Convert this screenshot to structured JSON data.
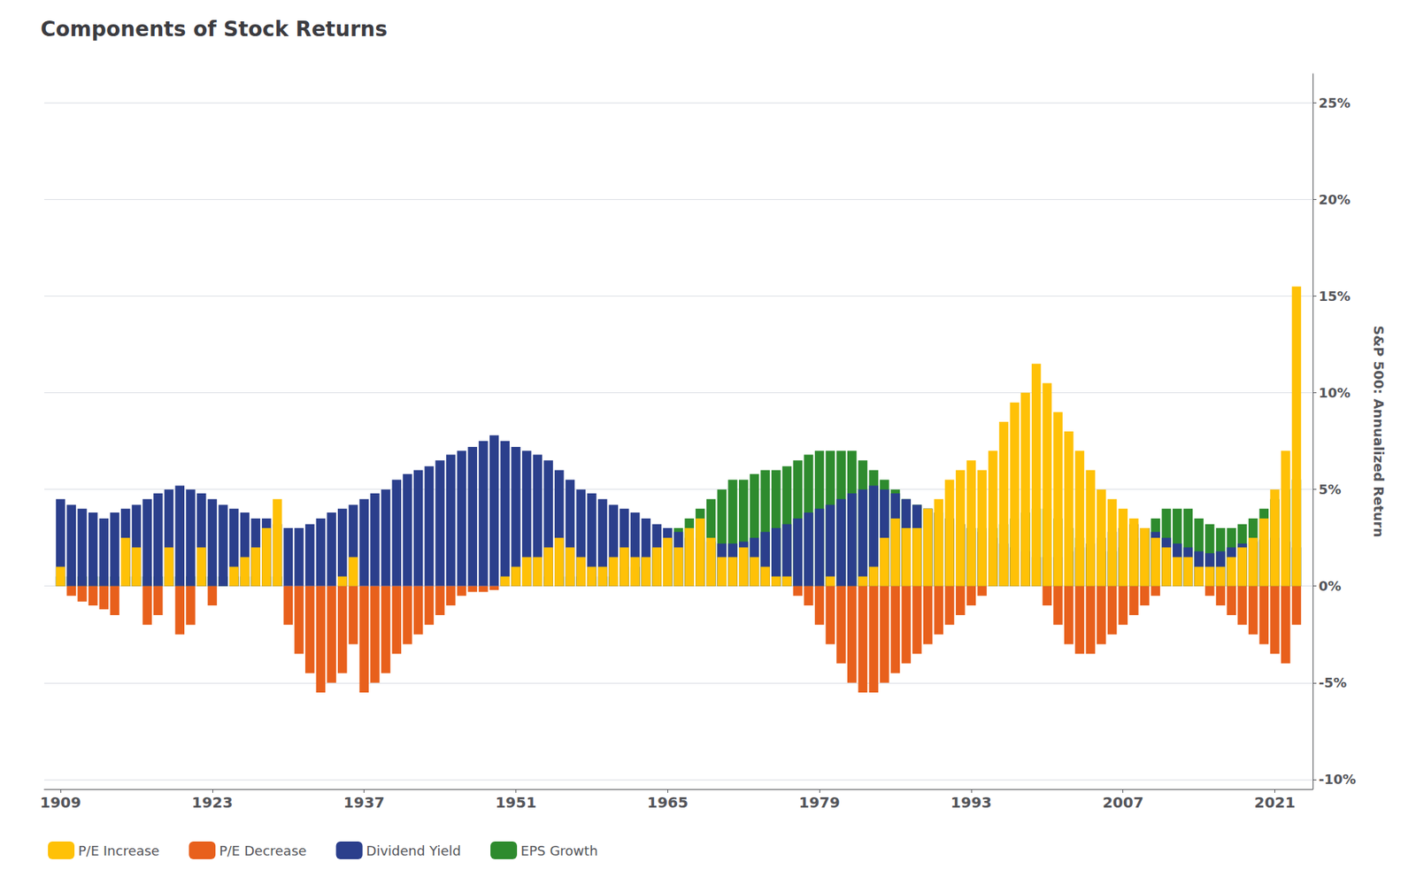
{
  "chart_data": {
    "type": "bar",
    "title": "Components of Stock Returns",
    "ylabel": "S&P 500: Annualized Return",
    "stacked": true,
    "grid": true,
    "legend": "lower left",
    "x": [
      1909,
      1910,
      1911,
      1912,
      1913,
      1914,
      1915,
      1916,
      1917,
      1918,
      1919,
      1920,
      1921,
      1922,
      1923,
      1924,
      1925,
      1926,
      1927,
      1928,
      1929,
      1930,
      1931,
      1932,
      1933,
      1934,
      1935,
      1936,
      1937,
      1938,
      1939,
      1940,
      1941,
      1942,
      1943,
      1944,
      1945,
      1946,
      1947,
      1948,
      1949,
      1950,
      1951,
      1952,
      1953,
      1954,
      1955,
      1956,
      1957,
      1958,
      1959,
      1960,
      1961,
      1962,
      1963,
      1964,
      1965,
      1966,
      1967,
      1968,
      1969,
      1970,
      1971,
      1972,
      1973,
      1974,
      1975,
      1976,
      1977,
      1978,
      1979,
      1980,
      1981,
      1982,
      1983,
      1984,
      1985,
      1986,
      1987,
      1988,
      1989,
      1990,
      1991,
      1992,
      1993,
      1994,
      1995,
      1996,
      1997,
      1998,
      1999,
      2000,
      2001,
      2002,
      2003,
      2004,
      2005,
      2006,
      2007,
      2008,
      2009,
      2010,
      2011,
      2012,
      2013,
      2014,
      2015,
      2016,
      2017,
      2018,
      2019,
      2020,
      2021,
      2022,
      2023
    ],
    "xlim": [
      1907.5,
      2024.5
    ],
    "xticks": [
      1909,
      1923,
      1937,
      1951,
      1965,
      1979,
      1993,
      2007,
      2021
    ],
    "ylim": [
      -10.5,
      26.5
    ],
    "yticks": [
      {
        "value": -10,
        "label": "-10%"
      },
      {
        "value": -5,
        "label": "-5%"
      },
      {
        "value": 0,
        "label": "0%"
      },
      {
        "value": 5,
        "label": "5%"
      },
      {
        "value": 10,
        "label": "10%"
      },
      {
        "value": 15,
        "label": "15%"
      },
      {
        "value": 20,
        "label": "20%"
      },
      {
        "value": 25,
        "label": "25%"
      }
    ],
    "series": [
      {
        "name": "P/E Increase",
        "color": "#FFC107",
        "values": [
          1.0,
          0.0,
          0.0,
          0.0,
          0.0,
          0.0,
          2.5,
          2.0,
          0.0,
          0.0,
          2.0,
          0.0,
          0.0,
          2.0,
          0.0,
          0.0,
          1.0,
          1.5,
          2.0,
          3.0,
          4.5,
          0.0,
          0.0,
          0.0,
          0.0,
          0.0,
          0.5,
          1.5,
          0.0,
          0.0,
          0.0,
          0.0,
          0.0,
          0.0,
          0.0,
          0.0,
          0.0,
          0.0,
          0.0,
          0.0,
          0.0,
          0.5,
          1.0,
          1.5,
          1.5,
          2.0,
          2.5,
          2.0,
          1.5,
          1.0,
          1.0,
          1.5,
          2.0,
          1.5,
          1.5,
          2.0,
          2.5,
          2.0,
          3.0,
          3.5,
          2.5,
          1.5,
          1.5,
          2.0,
          1.5,
          1.0,
          0.5,
          0.5,
          0.0,
          0.0,
          0.0,
          0.5,
          0.0,
          0.0,
          0.5,
          1.0,
          2.5,
          3.5,
          3.0,
          3.0,
          4.0,
          4.5,
          5.5,
          6.0,
          6.5,
          6.0,
          7.0,
          8.5,
          9.5,
          10.0,
          11.5,
          10.5,
          9.0,
          8.0,
          7.0,
          6.0,
          5.0,
          4.5,
          4.0,
          3.5,
          3.0,
          2.5,
          2.0,
          1.5,
          1.5,
          1.0,
          1.0,
          1.0,
          1.5,
          2.0,
          2.5,
          3.5,
          5.0,
          7.0,
          15.5
        ]
      },
      {
        "name": "P/E Decrease",
        "color": "#E8601C",
        "values": [
          0.0,
          -0.5,
          -0.8,
          -1.0,
          -1.2,
          -1.5,
          0.0,
          0.0,
          -2.0,
          -1.5,
          0.0,
          -2.5,
          -2.0,
          0.0,
          -1.0,
          0.0,
          0.0,
          0.0,
          0.0,
          0.0,
          0.0,
          -2.0,
          -3.5,
          -4.5,
          -5.5,
          -5.0,
          -4.5,
          -3.0,
          -5.5,
          -5.0,
          -4.5,
          -3.5,
          -3.0,
          -2.5,
          -2.0,
          -1.5,
          -1.0,
          -0.5,
          -0.3,
          -0.3,
          -0.2,
          0.0,
          0.0,
          0.0,
          0.0,
          0.0,
          0.0,
          0.0,
          0.0,
          0.0,
          0.0,
          0.0,
          0.0,
          0.0,
          0.0,
          0.0,
          0.0,
          0.0,
          0.0,
          0.0,
          0.0,
          0.0,
          0.0,
          0.0,
          0.0,
          0.0,
          0.0,
          0.0,
          -0.5,
          -1.0,
          -2.0,
          -3.0,
          -4.0,
          -5.0,
          -5.5,
          -5.5,
          -5.0,
          -4.5,
          -4.0,
          -3.5,
          -3.0,
          -2.5,
          -2.0,
          -1.5,
          -1.0,
          -0.5,
          0.0,
          0.0,
          0.0,
          0.0,
          0.0,
          -1.0,
          -2.0,
          -3.0,
          -3.5,
          -3.5,
          -3.0,
          -2.5,
          -2.0,
          -1.5,
          -1.0,
          -0.5,
          0.0,
          0.0,
          0.0,
          0.0,
          -0.5,
          -1.0,
          -1.5,
          -2.0,
          -2.5,
          -3.0,
          -3.5,
          -4.0,
          -2.0
        ]
      },
      {
        "name": "Dividend Yield",
        "color": "#2B3F8C",
        "values": [
          4.5,
          4.2,
          4.0,
          3.8,
          3.5,
          3.8,
          4.0,
          4.2,
          4.5,
          4.8,
          5.0,
          5.2,
          5.0,
          4.8,
          4.5,
          4.2,
          4.0,
          3.8,
          3.5,
          3.5,
          3.2,
          3.0,
          3.0,
          3.2,
          3.5,
          3.8,
          4.0,
          4.2,
          4.5,
          4.8,
          5.0,
          5.5,
          5.8,
          6.0,
          6.2,
          6.5,
          6.8,
          7.0,
          7.2,
          7.5,
          7.8,
          7.5,
          7.2,
          7.0,
          6.8,
          6.5,
          6.0,
          5.5,
          5.0,
          4.8,
          4.5,
          4.2,
          4.0,
          3.8,
          3.5,
          3.2,
          3.0,
          2.8,
          2.5,
          2.5,
          2.3,
          2.2,
          2.2,
          2.3,
          2.5,
          2.8,
          3.0,
          3.2,
          3.5,
          3.8,
          4.0,
          4.2,
          4.5,
          4.8,
          5.0,
          5.2,
          5.0,
          4.8,
          4.5,
          4.2,
          4.0,
          3.8,
          3.5,
          3.2,
          3.0,
          2.8,
          2.5,
          2.2,
          2.0,
          1.8,
          1.5,
          1.5,
          1.5,
          1.8,
          2.0,
          2.2,
          2.5,
          2.8,
          3.0,
          3.2,
          3.0,
          2.8,
          2.5,
          2.2,
          2.0,
          1.8,
          1.7,
          1.8,
          2.0,
          2.2,
          2.3,
          2.4,
          2.5,
          2.3,
          2.0
        ]
      },
      {
        "name": "EPS Growth",
        "color": "#2E8B2E",
        "values": [
          0.5,
          0.5,
          0.5,
          0.5,
          0.5,
          0.5,
          0.5,
          0.5,
          0.5,
          0.5,
          0.5,
          0.5,
          0.5,
          0.5,
          0.5,
          0.5,
          0.5,
          0.5,
          0.5,
          0.5,
          0.5,
          0.0,
          0.0,
          0.0,
          0.0,
          0.0,
          0.0,
          0.0,
          0.0,
          0.0,
          0.0,
          0.0,
          0.0,
          0.0,
          0.0,
          0.0,
          0.0,
          0.0,
          0.0,
          0.0,
          0.0,
          0.0,
          0.0,
          0.0,
          0.0,
          0.5,
          0.5,
          0.5,
          0.5,
          0.5,
          0.5,
          0.5,
          1.0,
          1.0,
          1.5,
          2.0,
          2.5,
          3.0,
          3.5,
          4.0,
          4.5,
          5.0,
          5.5,
          5.5,
          5.8,
          6.0,
          6.0,
          6.2,
          6.5,
          6.8,
          7.0,
          7.0,
          7.0,
          7.0,
          6.5,
          6.0,
          5.5,
          5.0,
          4.5,
          4.2,
          4.0,
          3.8,
          3.5,
          3.2,
          3.0,
          3.0,
          3.0,
          3.2,
          3.5,
          3.8,
          4.0,
          4.0,
          3.5,
          3.0,
          2.5,
          2.0,
          1.8,
          1.8,
          2.0,
          2.5,
          3.0,
          3.5,
          4.0,
          4.0,
          4.0,
          3.5,
          3.2,
          3.0,
          3.0,
          3.2,
          3.5,
          4.0,
          4.5,
          5.0,
          5.5
        ]
      }
    ]
  }
}
